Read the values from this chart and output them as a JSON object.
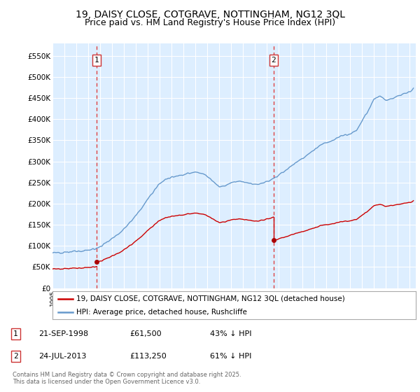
{
  "title": "19, DAISY CLOSE, COTGRAVE, NOTTINGHAM, NG12 3QL",
  "subtitle": "Price paid vs. HM Land Registry's House Price Index (HPI)",
  "title_fontsize": 10,
  "subtitle_fontsize": 9,
  "background_color": "#ffffff",
  "plot_bg_color": "#ddeeff",
  "grid_color": "#ffffff",
  "ylim": [
    0,
    580000
  ],
  "yticks": [
    0,
    50000,
    100000,
    150000,
    200000,
    250000,
    300000,
    350000,
    400000,
    450000,
    500000,
    550000
  ],
  "ytick_labels": [
    "£0",
    "£50K",
    "£100K",
    "£150K",
    "£200K",
    "£250K",
    "£300K",
    "£350K",
    "£400K",
    "£450K",
    "£500K",
    "£550K"
  ],
  "hpi_color": "#6699cc",
  "price_color": "#cc0000",
  "sale1_date": 1998.72,
  "sale1_price": 61500,
  "sale2_date": 2013.55,
  "sale2_price": 113250,
  "sale1_label": "1",
  "sale2_label": "2",
  "vline_color": "#dd3333",
  "marker_color": "#aa0000",
  "legend1": "19, DAISY CLOSE, COTGRAVE, NOTTINGHAM, NG12 3QL (detached house)",
  "legend2": "HPI: Average price, detached house, Rushcliffe",
  "table_rows": [
    {
      "num": "1",
      "date": "21-SEP-1998",
      "price": "£61,500",
      "pct": "43% ↓ HPI"
    },
    {
      "num": "2",
      "date": "24-JUL-2013",
      "price": "£113,250",
      "pct": "61% ↓ HPI"
    }
  ],
  "footnote": "Contains HM Land Registry data © Crown copyright and database right 2025.\nThis data is licensed under the Open Government Licence v3.0.",
  "xmin": 1995,
  "xmax": 2025.5
}
